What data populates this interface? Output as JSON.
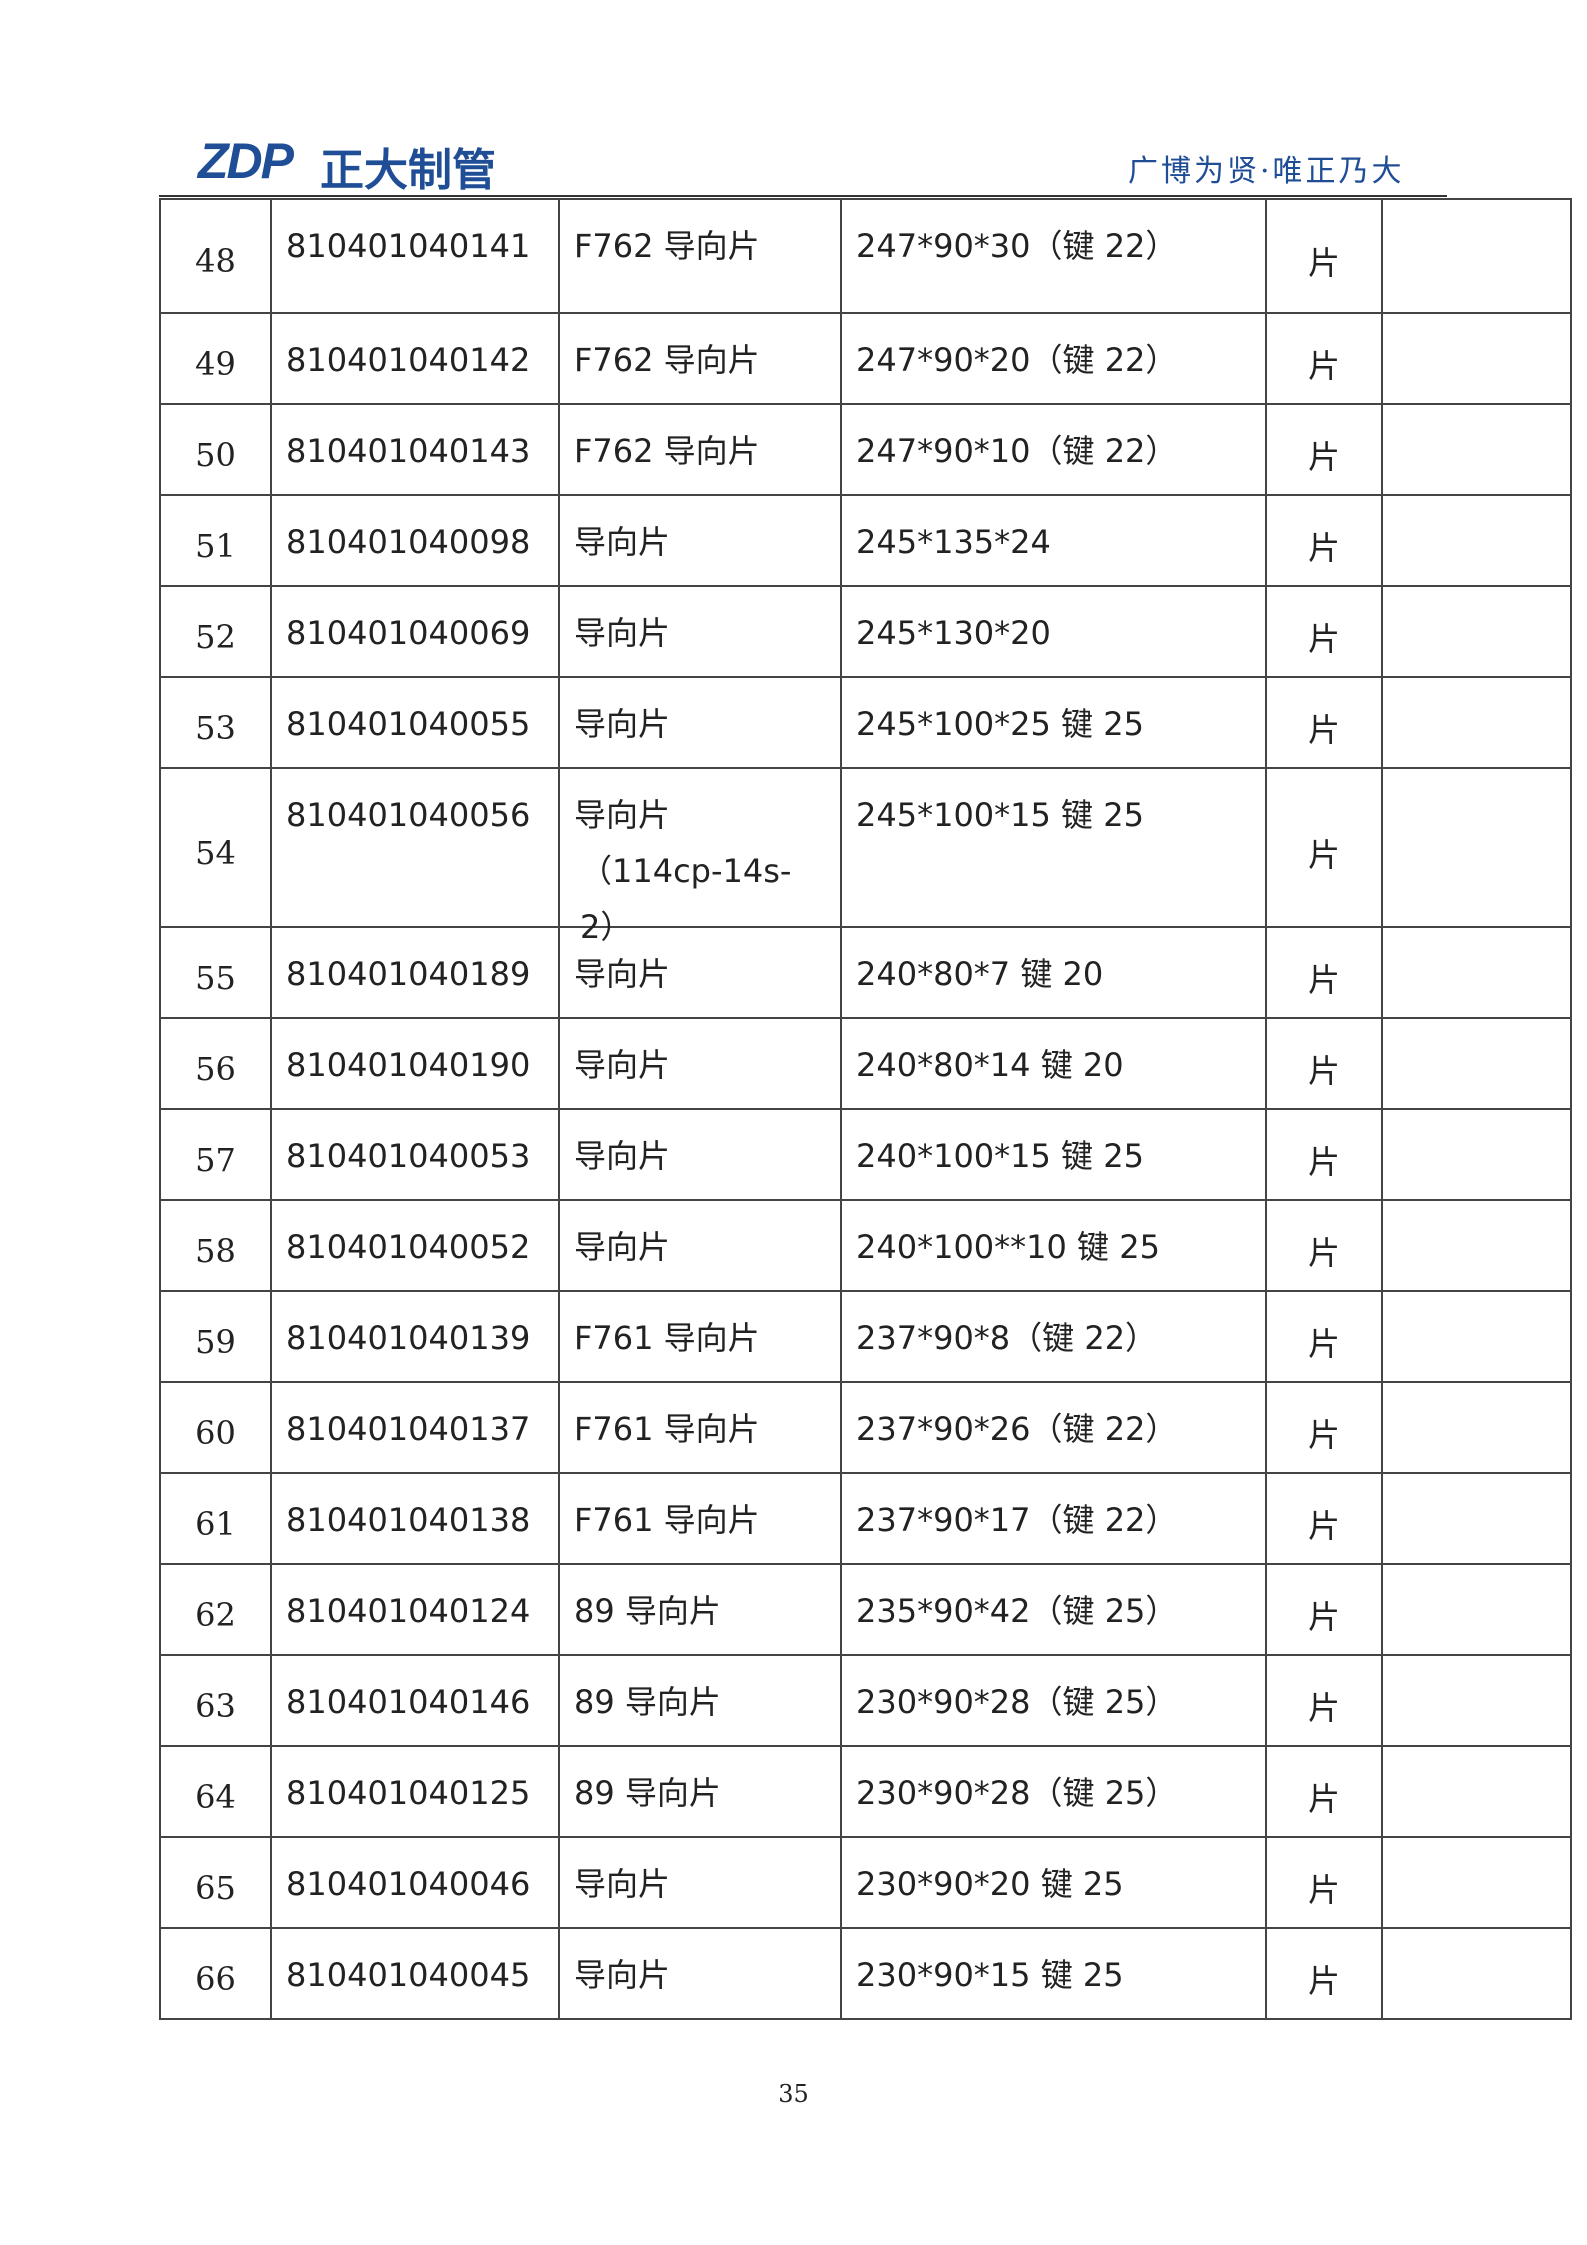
{
  "header": {
    "logo_mark": "ZDP",
    "logo_text": "正大制管",
    "slogan": "广博为贤·唯正乃大"
  },
  "table": {
    "rows": [
      [
        "48",
        "810401040141",
        "F762 导向片",
        "247*90*30（键 22）",
        "片"
      ],
      [
        "49",
        "810401040142",
        "F762 导向片",
        "247*90*20（键 22）",
        "片"
      ],
      [
        "50",
        "810401040143",
        "F762 导向片",
        "247*90*10（键 22）",
        "片"
      ],
      [
        "51",
        "810401040098",
        "导向片",
        "245*135*24",
        "片"
      ],
      [
        "52",
        "810401040069",
        "导向片",
        "245*130*20",
        "片"
      ],
      [
        "53",
        "810401040055",
        "导向片",
        "245*100*25 键 25",
        "片"
      ],
      [
        "54",
        "810401040056",
        [
          "导向片",
          "（114cp-14s-2）"
        ],
        "245*100*15 键 25",
        "片"
      ],
      [
        "55",
        "810401040189",
        "导向片",
        "240*80*7 键 20",
        "片"
      ],
      [
        "56",
        "810401040190",
        "导向片",
        "240*80*14 键 20",
        "片"
      ],
      [
        "57",
        "810401040053",
        "导向片",
        "240*100*15 键 25",
        "片"
      ],
      [
        "58",
        "810401040052",
        "导向片",
        "240*100**10 键 25",
        "片"
      ],
      [
        "59",
        "810401040139",
        "F761 导向片",
        "237*90*8（键 22）",
        "片"
      ],
      [
        "60",
        "810401040137",
        "F761 导向片",
        "237*90*26（键 22）",
        "片"
      ],
      [
        "61",
        "810401040138",
        "F761 导向片",
        "237*90*17（键 22）",
        "片"
      ],
      [
        "62",
        "810401040124",
        "89 导向片",
        "235*90*42（键 25）",
        "片"
      ],
      [
        "63",
        "810401040146",
        "89 导向片",
        "230*90*28（键 25）",
        "片"
      ],
      [
        "64",
        "810401040125",
        "89 导向片",
        "230*90*28（键 25）",
        "片"
      ],
      [
        "65",
        "810401040046",
        "导向片",
        "230*90*20 键 25",
        "片"
      ],
      [
        "66",
        "810401040045",
        "导向片",
        "230*90*15 键 25",
        "片"
      ]
    ]
  },
  "footer": {
    "page_number": "35"
  }
}
